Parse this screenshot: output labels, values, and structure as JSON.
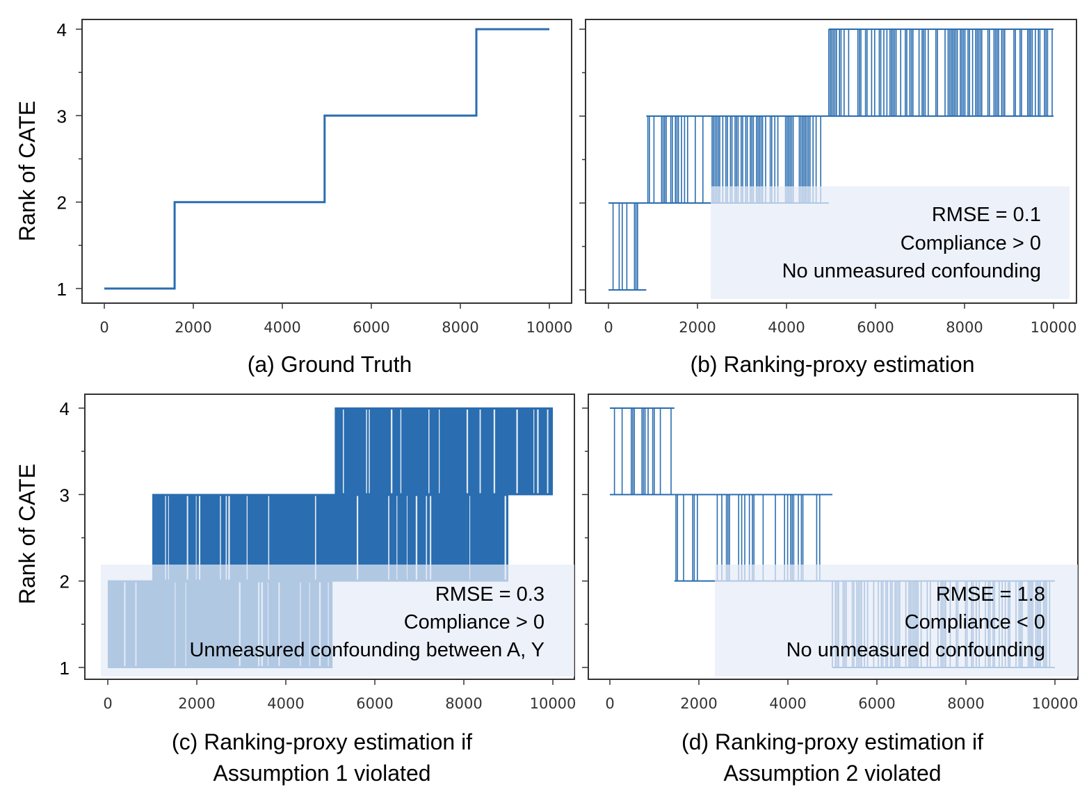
{
  "chart_data": [
    {
      "type": "line",
      "panel": "a",
      "caption": [
        "(a) Ground Truth"
      ],
      "ylabel": "Rank of CATE",
      "xlim": [
        0,
        10000
      ],
      "ylim": [
        1,
        4
      ],
      "xticks": [
        "0",
        "2000",
        "4000",
        "6000",
        "8000",
        "10000"
      ],
      "yticks": [
        "1",
        "2",
        "3",
        "4"
      ],
      "series": [
        {
          "x": [
            0,
            1580,
            1580,
            4950,
            4950,
            8360,
            8360,
            10000
          ],
          "y": [
            1,
            1,
            2,
            2,
            3,
            3,
            4,
            4
          ]
        }
      ],
      "annotations": []
    },
    {
      "type": "line",
      "panel": "b",
      "caption": [
        "(b) Ranking-proxy estimation"
      ],
      "ylabel": "",
      "xlim": [
        0,
        10000
      ],
      "ylim": [
        1,
        4
      ],
      "xticks": [
        "0",
        "2000",
        "4000",
        "6000",
        "8000",
        "10000"
      ],
      "yticks": [],
      "segments": [
        {
          "x0": 0,
          "x1": 850,
          "low": 1,
          "high": 2,
          "density": "dense"
        },
        {
          "x0": 850,
          "x1": 2500,
          "low": 2,
          "high": 3,
          "density": "medium"
        },
        {
          "x0": 2500,
          "x1": 4950,
          "low": 2,
          "high": 3,
          "density": "medium"
        },
        {
          "x0": 4950,
          "x1": 10000,
          "low": 3,
          "high": 4,
          "density": "medium"
        }
      ],
      "annotations": [
        "RMSE = 0.1",
        "Compliance > 0",
        "No unmeasured confounding"
      ]
    },
    {
      "type": "line",
      "panel": "c",
      "caption": [
        "(c) Ranking-proxy estimation if",
        "Assumption 1 violated"
      ],
      "ylabel": "Rank of CATE",
      "xlim": [
        0,
        10000
      ],
      "ylim": [
        1,
        4
      ],
      "xticks": [
        "0",
        "2000",
        "4000",
        "6000",
        "8000",
        "10000"
      ],
      "yticks": [
        "1",
        "2",
        "3",
        "4"
      ],
      "segments": [
        {
          "x0": 0,
          "x1": 5050,
          "low": 1,
          "high": 2,
          "density": "very dense"
        },
        {
          "x0": 1000,
          "x1": 9000,
          "low": 2,
          "high": 3,
          "density": "very dense"
        },
        {
          "x0": 5100,
          "x1": 10000,
          "low": 3,
          "high": 4,
          "density": "very dense"
        }
      ],
      "annotations": [
        "RMSE = 0.3",
        "Compliance > 0",
        "Unmeasured confounding between A, Y"
      ]
    },
    {
      "type": "line",
      "panel": "d",
      "caption": [
        "(d) Ranking-proxy estimation if",
        "Assumption 2 violated"
      ],
      "ylabel": "",
      "xlim": [
        0,
        10000
      ],
      "ylim": [
        1,
        4
      ],
      "xticks": [
        "0",
        "2000",
        "4000",
        "6000",
        "8000",
        "10000"
      ],
      "yticks": [],
      "segments": [
        {
          "x0": 0,
          "x1": 1450,
          "low": 3,
          "high": 4,
          "density": "dense"
        },
        {
          "x0": 1450,
          "x1": 5000,
          "low": 2,
          "high": 3,
          "density": "dense"
        },
        {
          "x0": 5000,
          "x1": 10000,
          "low": 1,
          "high": 2,
          "density": "medium"
        }
      ],
      "annotations": [
        "RMSE = 1.8",
        "Compliance < 0",
        "No unmeasured confounding"
      ]
    }
  ],
  "colors": {
    "line": "#2a6db0",
    "annotation_box": "#e6ecf6",
    "axes": "#333333"
  }
}
